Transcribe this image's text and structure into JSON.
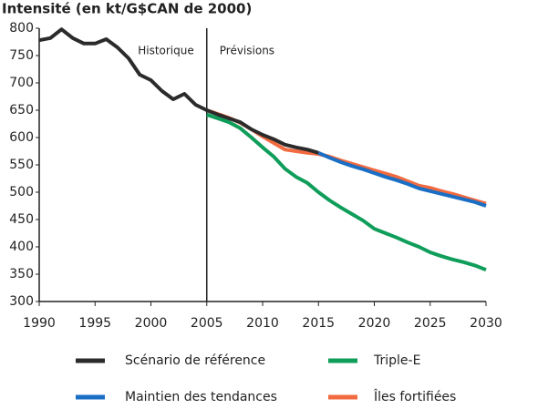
{
  "chart_data": {
    "type": "line",
    "title": "Intensité (en kt/G$CAN de 2000)",
    "annotations": [
      "Historique",
      "Prévisions"
    ],
    "vline": 2005,
    "x": [
      1990,
      1991,
      1992,
      1993,
      1994,
      1995,
      1996,
      1997,
      1998,
      1999,
      2000,
      2001,
      2002,
      2003,
      2004,
      2005,
      2006,
      2007,
      2008,
      2009,
      2010,
      2011,
      2012,
      2013,
      2014,
      2015,
      2016,
      2017,
      2018,
      2019,
      2020,
      2021,
      2022,
      2023,
      2024,
      2025,
      2026,
      2027,
      2028,
      2029,
      2030
    ],
    "xlim": [
      1990,
      2030
    ],
    "xticks": [
      1990,
      1995,
      2000,
      2005,
      2010,
      2015,
      2020,
      2025,
      2030
    ],
    "ylim": [
      300,
      800
    ],
    "yticks": [
      300,
      350,
      400,
      450,
      500,
      550,
      600,
      650,
      700,
      750,
      800
    ],
    "grid": false,
    "series": [
      {
        "name": "Triple-E",
        "color": "#0f9d5a",
        "values": [
          null,
          null,
          null,
          null,
          null,
          null,
          null,
          null,
          null,
          null,
          null,
          null,
          null,
          null,
          null,
          642,
          635,
          628,
          617,
          600,
          582,
          565,
          543,
          528,
          517,
          500,
          485,
          472,
          460,
          448,
          433,
          425,
          417,
          408,
          400,
          390,
          383,
          377,
          372,
          366,
          358
        ]
      },
      {
        "name": "Îles fortifiées",
        "color": "#f26a3f",
        "values": [
          null,
          null,
          null,
          null,
          null,
          null,
          null,
          null,
          null,
          null,
          null,
          null,
          null,
          null,
          null,
          650,
          643,
          636,
          627,
          615,
          602,
          590,
          578,
          575,
          572,
          570,
          565,
          558,
          552,
          546,
          540,
          534,
          528,
          520,
          512,
          508,
          502,
          497,
          491,
          485,
          479
        ]
      },
      {
        "name": "Maintien des tendances",
        "color": "#1a6fc4",
        "values": [
          null,
          null,
          null,
          null,
          null,
          null,
          null,
          null,
          null,
          null,
          null,
          null,
          null,
          null,
          null,
          null,
          null,
          null,
          null,
          null,
          null,
          null,
          null,
          null,
          null,
          572,
          563,
          555,
          548,
          542,
          535,
          528,
          522,
          515,
          507,
          502,
          497,
          492,
          487,
          482,
          475
        ]
      },
      {
        "name": "Scénario de référence",
        "color": "#2b2b2b",
        "values": [
          778,
          782,
          798,
          782,
          772,
          772,
          780,
          765,
          745,
          715,
          705,
          685,
          670,
          680,
          660,
          650,
          642,
          635,
          628,
          615,
          605,
          597,
          587,
          582,
          578,
          572,
          null,
          null,
          null,
          null,
          null,
          null,
          null,
          null,
          null,
          null,
          null,
          null,
          null,
          null,
          null
        ]
      }
    ],
    "legend_order": [
      3,
      0,
      2,
      1
    ]
  }
}
